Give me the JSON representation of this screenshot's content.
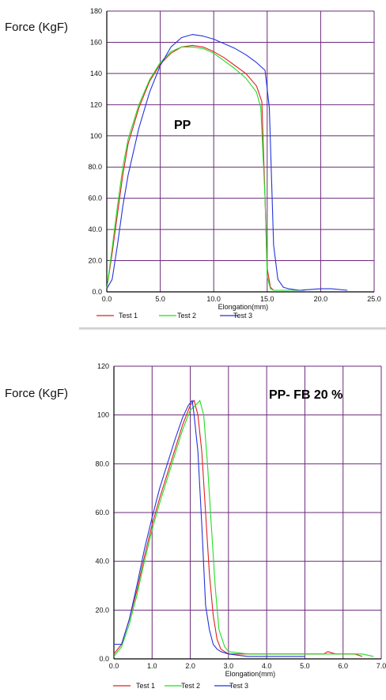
{
  "chart_data": [
    {
      "type": "line",
      "title": "PP",
      "ylabel": "Force (KgF)",
      "xlabel": "Elongation(mm)",
      "xlim": [
        0,
        25
      ],
      "ylim": [
        0,
        180
      ],
      "x_ticks": [
        "0.0",
        "5.0",
        "10.0",
        "15.0",
        "20.0",
        "25.0"
      ],
      "y_ticks": [
        "0.0",
        "20.0",
        "40.0",
        "60.0",
        "80.0",
        "100",
        "120",
        "140",
        "160",
        "180"
      ],
      "grid": true,
      "legend_position": "bottom",
      "series": [
        {
          "name": "Test 1",
          "color": "#e02020",
          "x": [
            0,
            0.5,
            1,
            1.5,
            2,
            3,
            4,
            5,
            6,
            7,
            8,
            9,
            10,
            11,
            12,
            13,
            14,
            14.5,
            14.8,
            15.0,
            15.3,
            15.6,
            16,
            16.5,
            17
          ],
          "y": [
            2,
            25,
            50,
            75,
            95,
            118,
            135,
            146,
            153,
            157,
            158,
            157,
            154,
            150,
            145,
            140,
            132,
            122,
            60,
            15,
            3,
            1,
            1,
            1,
            1
          ]
        },
        {
          "name": "Test 2",
          "color": "#22dd22",
          "x": [
            0,
            0.5,
            1,
            1.5,
            2,
            3,
            4,
            5,
            6,
            7,
            8,
            9,
            10,
            11,
            12,
            13,
            14,
            14.4,
            14.8,
            15.0,
            15.3,
            15.6,
            16,
            17,
            18.5
          ],
          "y": [
            2,
            28,
            55,
            80,
            98,
            120,
            136,
            147,
            154,
            157,
            157,
            156,
            153,
            148,
            143,
            137,
            128,
            118,
            60,
            10,
            2,
            1,
            1,
            1,
            1
          ]
        },
        {
          "name": "Test 3",
          "color": "#2233dd",
          "x": [
            0,
            0.5,
            1,
            1.5,
            2,
            3,
            4,
            5,
            6,
            7,
            8,
            9,
            10,
            11,
            12,
            13,
            14,
            14.8,
            15.2,
            15.6,
            16,
            16.5,
            17,
            18,
            20,
            21,
            22.5
          ],
          "y": [
            2,
            8,
            30,
            55,
            75,
            105,
            128,
            145,
            157,
            163,
            165,
            164,
            162,
            159,
            156,
            152,
            147,
            142,
            118,
            30,
            8,
            3,
            2,
            1,
            2,
            2,
            1
          ]
        }
      ]
    },
    {
      "type": "line",
      "title": "PP- FB 20 %",
      "ylabel": "Force (KgF)",
      "xlabel": "Elongation(mm)",
      "xlim": [
        0,
        7
      ],
      "ylim": [
        0,
        120
      ],
      "x_ticks": [
        "0.0",
        "1.0",
        "2.0",
        "3.0",
        "4.0",
        "5.0",
        "6.0",
        "7.0"
      ],
      "y_ticks": [
        "0.0",
        "20.0",
        "40.0",
        "60.0",
        "80.0",
        "100",
        "120"
      ],
      "grid": true,
      "legend_position": "bottom",
      "series": [
        {
          "name": "Test 1",
          "color": "#e02020",
          "x": [
            0,
            0.2,
            0.4,
            0.6,
            0.8,
            1.0,
            1.2,
            1.4,
            1.6,
            1.8,
            2.0,
            2.1,
            2.2,
            2.3,
            2.4,
            2.5,
            2.6,
            2.7,
            2.8,
            3.0,
            3.5,
            4.0,
            4.5,
            5.0,
            5.5,
            5.6,
            5.8,
            6.0,
            6.3,
            6.5
          ],
          "y": [
            2,
            6,
            16,
            28,
            42,
            55,
            66,
            76,
            86,
            96,
            104,
            106,
            100,
            85,
            60,
            35,
            18,
            8,
            4,
            2,
            2,
            2,
            2,
            2,
            2,
            3,
            2,
            2,
            2,
            1
          ]
        },
        {
          "name": "Test 2",
          "color": "#22dd22",
          "x": [
            0,
            0.2,
            0.4,
            0.6,
            0.8,
            1.0,
            1.2,
            1.4,
            1.6,
            1.8,
            2.0,
            2.2,
            2.25,
            2.35,
            2.45,
            2.55,
            2.65,
            2.75,
            2.9,
            3.0,
            3.5,
            4.0,
            4.5,
            5.0,
            5.5,
            6.0,
            6.5,
            6.8
          ],
          "y": [
            1,
            5,
            14,
            26,
            40,
            53,
            64,
            74,
            84,
            94,
            102,
            105,
            106,
            100,
            80,
            55,
            30,
            12,
            5,
            3,
            2,
            2,
            2,
            2,
            2,
            2,
            2,
            1
          ]
        },
        {
          "name": "Test 3",
          "color": "#2233dd",
          "x": [
            0,
            0.2,
            0.4,
            0.6,
            0.8,
            1.0,
            1.2,
            1.4,
            1.6,
            1.8,
            1.95,
            2.05,
            2.1,
            2.2,
            2.3,
            2.4,
            2.5,
            2.6,
            2.7,
            2.8,
            3.0,
            3.5,
            4.0,
            4.5,
            5.0
          ],
          "y": [
            6,
            6,
            16,
            30,
            45,
            58,
            70,
            80,
            90,
            99,
            104,
            106,
            100,
            85,
            55,
            22,
            12,
            6,
            4,
            3,
            2,
            1,
            1,
            1,
            1
          ]
        }
      ]
    }
  ]
}
